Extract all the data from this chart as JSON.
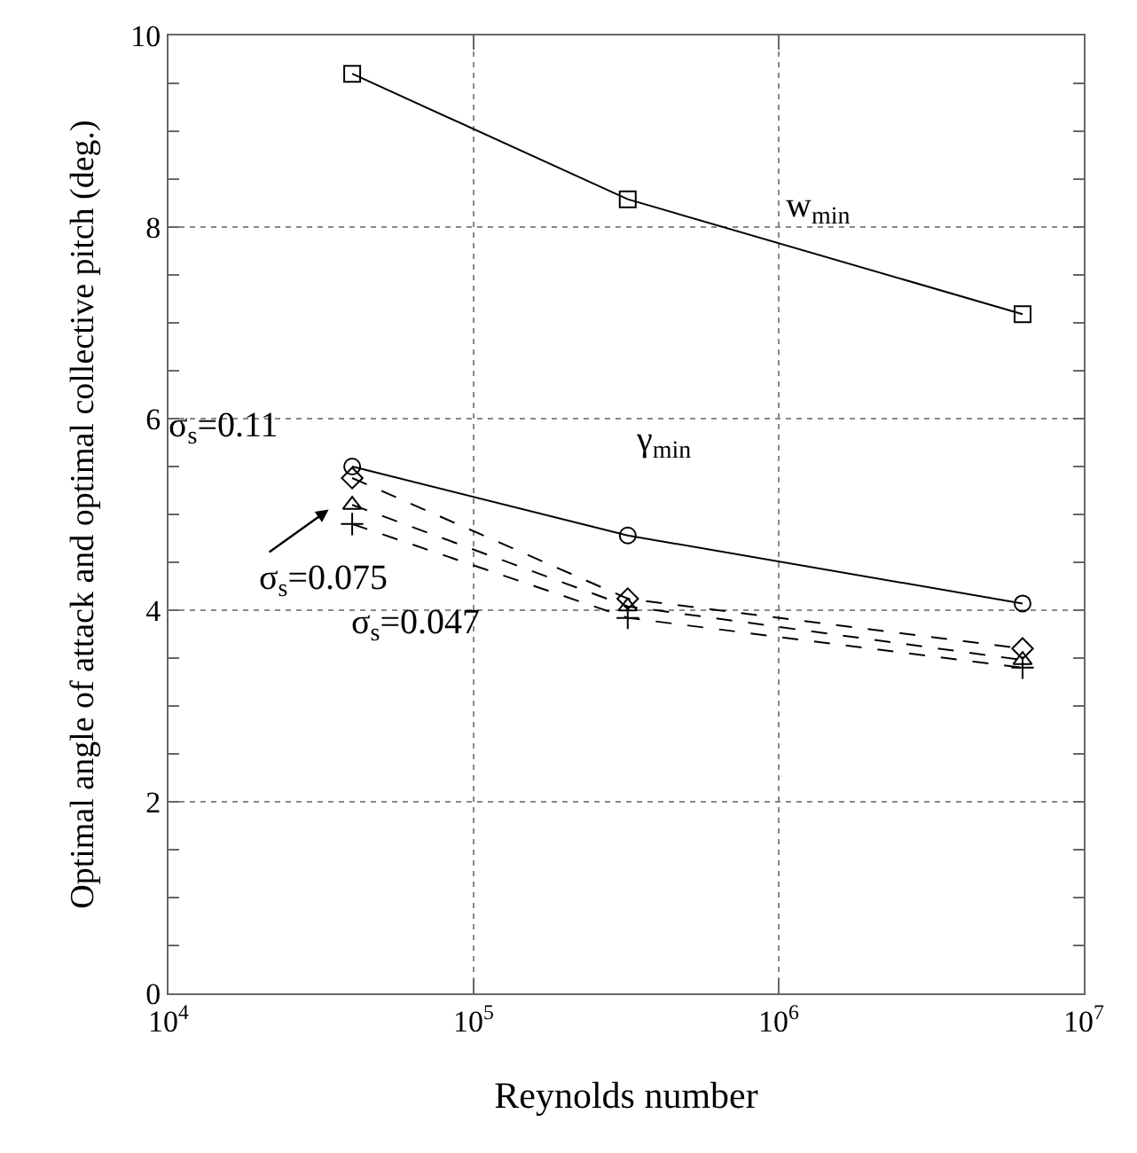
{
  "chart_data": {
    "type": "line",
    "xlabel": "Reynolds number",
    "ylabel": "Optimal angle of attack and optimal collective pitch (deg.)",
    "x": [
      40000,
      320000,
      6300000
    ],
    "series": [
      {
        "color": "#000000",
        "marker": "square",
        "line_style": "solid",
        "values": [
          9.6,
          8.29,
          7.09
        ]
      },
      {
        "color": "#000000",
        "marker": "circle",
        "line_style": "solid",
        "values": [
          5.5,
          4.78,
          4.07
        ]
      },
      {
        "color": "#000000",
        "marker": "diamond",
        "line_style": "dashed",
        "values": [
          5.38,
          4.12,
          3.6
        ]
      },
      {
        "color": "#000000",
        "marker": "triangle",
        "line_style": "dashed",
        "values": [
          5.1,
          4.04,
          3.48
        ]
      },
      {
        "color": "#000000",
        "marker": "cross",
        "line_style": "dashed",
        "values": [
          4.9,
          3.92,
          3.4
        ]
      }
    ],
    "annotations": [
      "w$_{min}$",
      "γ$_{min}$",
      "σ$_{s}$=0.11",
      "σ$_{s}$=0.075",
      "σ$_{s}$=0.047"
    ],
    "log": "x",
    "xlim": [
      10000,
      10000000
    ],
    "xticks": [
      {
        "value": 10000,
        "label": "10$^{4}$"
      },
      {
        "value": 100000,
        "label": "10$^{5}$"
      },
      {
        "value": 1000000,
        "label": "10$^{6}$"
      },
      {
        "value": 10000000,
        "label": "10$^{7}$"
      }
    ],
    "ylim": [
      0,
      10
    ],
    "yticks": [
      0,
      {
        "value": 0.5,
        "label": null
      },
      {
        "value": 1,
        "label": null
      },
      {
        "value": 1.5,
        "label": null
      },
      2,
      {
        "value": 2.5,
        "label": null
      },
      {
        "value": 3,
        "label": null
      },
      {
        "value": 3.5,
        "label": null
      },
      4,
      {
        "value": 4.5,
        "label": null
      },
      {
        "value": 5,
        "label": null
      },
      {
        "value": 5.5,
        "label": null
      },
      6,
      {
        "value": 6.5,
        "label": null
      },
      {
        "value": 7,
        "label": null
      },
      {
        "value": 7.5,
        "label": null
      },
      8,
      {
        "value": 8.5,
        "label": null
      },
      {
        "value": 9,
        "label": null
      },
      {
        "value": 9.5,
        "label": null
      },
      10
    ],
    "grid": true
  }
}
